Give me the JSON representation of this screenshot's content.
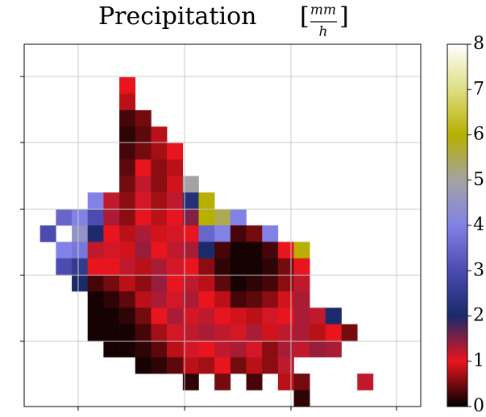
{
  "chart_data": {
    "type": "heatmap",
    "title": "Precipitation",
    "unit": {
      "open": "[",
      "numerator": "mm",
      "denominator": "h",
      "close": "]"
    },
    "zlim": [
      0,
      8
    ],
    "cbar_ticks": [
      0,
      1,
      2,
      3,
      4,
      5,
      6,
      7,
      8
    ],
    "colors": [
      "#000000",
      "#e8151e",
      "#1a2a6a",
      "#4b4bb0",
      "#8282e6",
      "#a3a3a3",
      "#b7b000",
      "#dede82",
      "#ffffff"
    ],
    "z": [
      [
        null,
        null,
        null,
        null,
        null,
        null,
        null,
        null,
        null,
        null,
        null,
        null,
        null,
        null,
        null,
        null,
        null,
        null,
        null,
        null,
        null,
        null,
        null,
        null,
        null
      ],
      [
        null,
        null,
        null,
        null,
        null,
        null,
        null,
        null,
        null,
        null,
        null,
        null,
        null,
        null,
        null,
        null,
        null,
        null,
        null,
        null,
        null,
        null,
        null,
        null,
        null
      ],
      [
        null,
        null,
        null,
        null,
        null,
        null,
        1,
        null,
        null,
        null,
        null,
        null,
        null,
        null,
        null,
        null,
        null,
        null,
        null,
        null,
        null,
        null,
        null,
        null,
        null
      ],
      [
        null,
        null,
        null,
        null,
        null,
        null,
        0.8,
        null,
        null,
        null,
        null,
        null,
        null,
        null,
        null,
        null,
        null,
        null,
        null,
        null,
        null,
        null,
        null,
        null,
        null
      ],
      [
        null,
        null,
        null,
        null,
        null,
        null,
        0.3,
        0.5,
        null,
        null,
        null,
        null,
        null,
        null,
        null,
        null,
        null,
        null,
        null,
        null,
        null,
        null,
        null,
        null,
        null
      ],
      [
        null,
        null,
        null,
        null,
        null,
        null,
        0.2,
        0.4,
        0.8,
        null,
        null,
        null,
        null,
        null,
        null,
        null,
        null,
        null,
        null,
        null,
        null,
        null,
        null,
        null,
        null
      ],
      [
        null,
        null,
        null,
        null,
        null,
        null,
        0.3,
        0.5,
        0.7,
        1,
        null,
        null,
        null,
        null,
        null,
        null,
        null,
        null,
        null,
        null,
        null,
        null,
        null,
        null,
        null
      ],
      [
        null,
        null,
        null,
        null,
        null,
        null,
        0.4,
        1,
        0.6,
        0.8,
        null,
        null,
        null,
        null,
        null,
        null,
        null,
        null,
        null,
        null,
        null,
        null,
        null,
        null,
        null
      ],
      [
        null,
        null,
        null,
        null,
        null,
        null,
        0.5,
        1.2,
        0.6,
        0.9,
        5,
        null,
        null,
        null,
        null,
        null,
        null,
        null,
        null,
        null,
        null,
        null,
        null,
        null,
        null
      ],
      [
        null,
        null,
        null,
        null,
        4,
        1.2,
        0.6,
        1.1,
        0.7,
        1.2,
        2.2,
        6,
        null,
        null,
        null,
        null,
        null,
        null,
        null,
        null,
        null,
        null,
        null,
        null,
        null
      ],
      [
        null,
        null,
        3.5,
        4,
        3,
        1.3,
        0.6,
        1,
        0.8,
        1,
        1.5,
        6,
        5.5,
        4,
        null,
        null,
        null,
        null,
        null,
        null,
        null,
        null,
        null,
        null,
        null
      ],
      [
        null,
        3,
        null,
        4.5,
        2,
        1,
        0.8,
        1.3,
        0.9,
        1.1,
        1,
        3.5,
        4,
        0.3,
        0.5,
        4,
        null,
        null,
        null,
        null,
        null,
        null,
        null,
        null,
        null
      ],
      [
        null,
        null,
        4,
        3.8,
        1.2,
        1.1,
        0.9,
        1.4,
        1,
        1.2,
        1.3,
        2,
        0.3,
        0.1,
        0.1,
        0.3,
        1,
        6,
        null,
        null,
        null,
        null,
        null,
        null,
        null
      ],
      [
        null,
        null,
        3,
        2.5,
        1,
        1,
        1.2,
        0.8,
        1.3,
        1.1,
        1,
        0.6,
        0.2,
        0.1,
        0.1,
        0.2,
        0.5,
        1,
        null,
        null,
        null,
        null,
        null,
        null,
        null
      ],
      [
        null,
        null,
        null,
        2,
        0.3,
        0.5,
        0.8,
        0.6,
        1.4,
        1,
        1.2,
        0.8,
        0.4,
        0.1,
        0.2,
        0.3,
        0.6,
        1.2,
        null,
        null,
        null,
        null,
        null,
        null,
        null
      ],
      [
        null,
        null,
        null,
        null,
        0.1,
        0.2,
        0.4,
        0.8,
        1.3,
        1.1,
        1.3,
        1,
        0.8,
        0.3,
        0.4,
        0.6,
        0.9,
        1.3,
        null,
        null,
        null,
        null,
        null,
        null,
        null
      ],
      [
        null,
        null,
        null,
        null,
        0.1,
        0.1,
        0.2,
        0.5,
        1,
        1.3,
        1.1,
        1.2,
        1,
        0.9,
        0.8,
        1.1,
        1,
        1.3,
        1.2,
        2,
        null,
        null,
        null,
        null,
        null
      ],
      [
        null,
        null,
        null,
        null,
        0.1,
        0.1,
        0.1,
        0.3,
        0.7,
        1.1,
        1.2,
        1.3,
        1.2,
        1.1,
        1.3,
        0.9,
        1.2,
        1.3,
        0.8,
        1,
        0.5,
        null,
        null,
        null,
        null
      ],
      [
        null,
        null,
        null,
        null,
        null,
        0.1,
        0.1,
        0.2,
        0.4,
        0.8,
        1.1,
        1,
        1.2,
        1.3,
        1.1,
        0.6,
        1.3,
        1.2,
        1.4,
        1.3,
        null,
        null,
        null,
        null,
        null
      ],
      [
        null,
        null,
        null,
        null,
        null,
        null,
        null,
        0.1,
        0.2,
        0.4,
        0.8,
        0.7,
        1,
        0.5,
        0.8,
        0.6,
        1.2,
        null,
        null,
        null,
        null,
        null,
        null,
        null,
        null
      ],
      [
        null,
        null,
        null,
        null,
        null,
        null,
        null,
        null,
        null,
        null,
        0.2,
        null,
        0.5,
        null,
        0.3,
        null,
        0.8,
        0.5,
        null,
        null,
        null,
        1.2,
        null,
        null,
        null
      ],
      [
        null,
        null,
        null,
        null,
        null,
        null,
        null,
        null,
        null,
        null,
        null,
        null,
        null,
        null,
        null,
        null,
        null,
        0.2,
        null,
        null,
        null,
        null,
        null,
        null,
        null
      ]
    ]
  }
}
